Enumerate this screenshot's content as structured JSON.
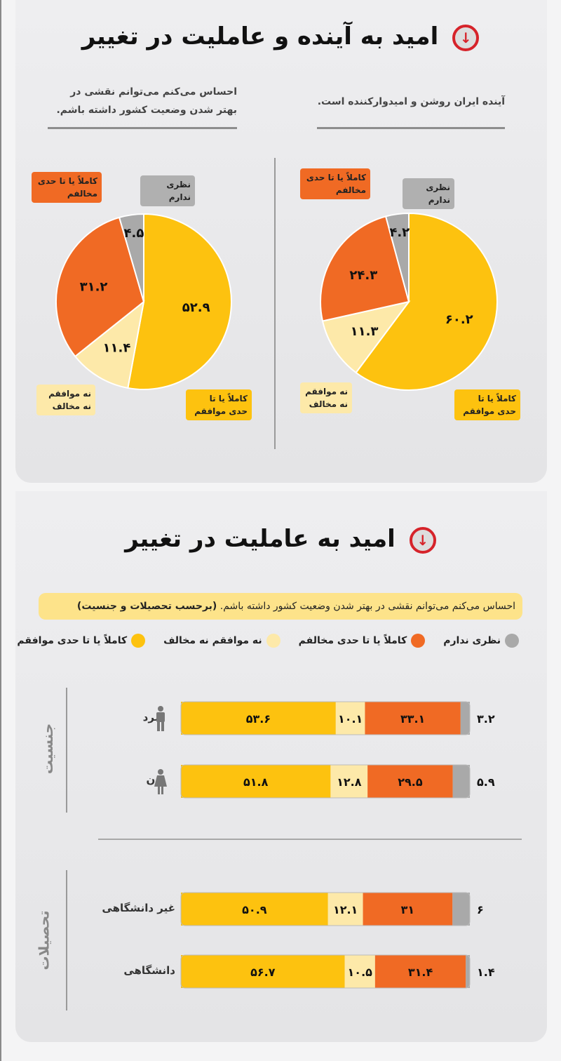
{
  "section1": {
    "title": "امید به آینده و عاملیت در تغییر",
    "left_question": "احساس می‌کنم می‌توانم نقشی در بهتر شدن وضعیت کشور داشته باشم.",
    "right_question": "آینده ایران روشن و امیدوارکننده است."
  },
  "section2": {
    "title": "امید به عاملیت در تغییر",
    "banner": "احساس می‌کنم می‌توانم نقشی در بهتر شدن وضعیت کشور داشته باشم.",
    "banner_bold": "(برحسب تحصیلات و جنسیت)",
    "groups": [
      "جنسیت",
      "تحصیلات"
    ]
  },
  "categories": {
    "agree": "کاملاً یا تا حدی موافقم",
    "neutral": "نه موافقم نه مخالف",
    "disagree": "کاملاً یا تا حدی مخالفم",
    "noop": "نظری ندارم"
  },
  "colors": {
    "agree": "#fdc20f",
    "neutral": "#fde9a9",
    "disagree": "#f06a24",
    "noop": "#a9a9a9"
  },
  "chart_data": [
    {
      "type": "pie",
      "title": "احساس می‌کنم می‌توانم نقشی در بهتر شدن وضعیت کشور داشته باشم.",
      "slices": [
        {
          "key": "agree",
          "value": 52.9,
          "label": "۵۲.۹"
        },
        {
          "key": "neutral",
          "value": 11.4,
          "label": "۱۱.۴"
        },
        {
          "key": "disagree",
          "value": 31.2,
          "label": "۳۱.۲"
        },
        {
          "key": "noop",
          "value": 4.5,
          "label": "۴.۵"
        }
      ]
    },
    {
      "type": "pie",
      "title": "آینده ایران روشن و امیدوارکننده است.",
      "slices": [
        {
          "key": "agree",
          "value": 60.2,
          "label": "۶۰.۲"
        },
        {
          "key": "neutral",
          "value": 11.3,
          "label": "۱۱.۳"
        },
        {
          "key": "disagree",
          "value": 24.3,
          "label": "۲۴.۳"
        },
        {
          "key": "noop",
          "value": 4.2,
          "label": "۴.۲"
        }
      ]
    },
    {
      "type": "bar",
      "stacked": true,
      "rows": [
        {
          "label": "مرد",
          "icon": "man-icon",
          "values": [
            53.6,
            10.1,
            33.1,
            3.2
          ],
          "labels": [
            "۵۳.۶",
            "۱۰.۱",
            "۳۳.۱",
            "۳.۲"
          ]
        },
        {
          "label": "زن",
          "icon": "woman-icon",
          "values": [
            51.8,
            12.8,
            29.5,
            5.9
          ],
          "labels": [
            "۵۱.۸",
            "۱۲.۸",
            "۲۹.۵",
            "۵.۹"
          ]
        },
        {
          "label": "غیر دانشگاهی",
          "values": [
            50.9,
            12.1,
            31,
            6
          ],
          "labels": [
            "۵۰.۹",
            "۱۲.۱",
            "۳۱",
            "۶"
          ]
        },
        {
          "label": "دانشگاهی",
          "values": [
            56.7,
            10.5,
            31.4,
            1.4
          ],
          "labels": [
            "۵۶.۷",
            "۱۰.۵",
            "۳۱.۴",
            "۱.۴"
          ]
        }
      ],
      "series_order": [
        "agree",
        "neutral",
        "disagree",
        "noop"
      ]
    }
  ]
}
